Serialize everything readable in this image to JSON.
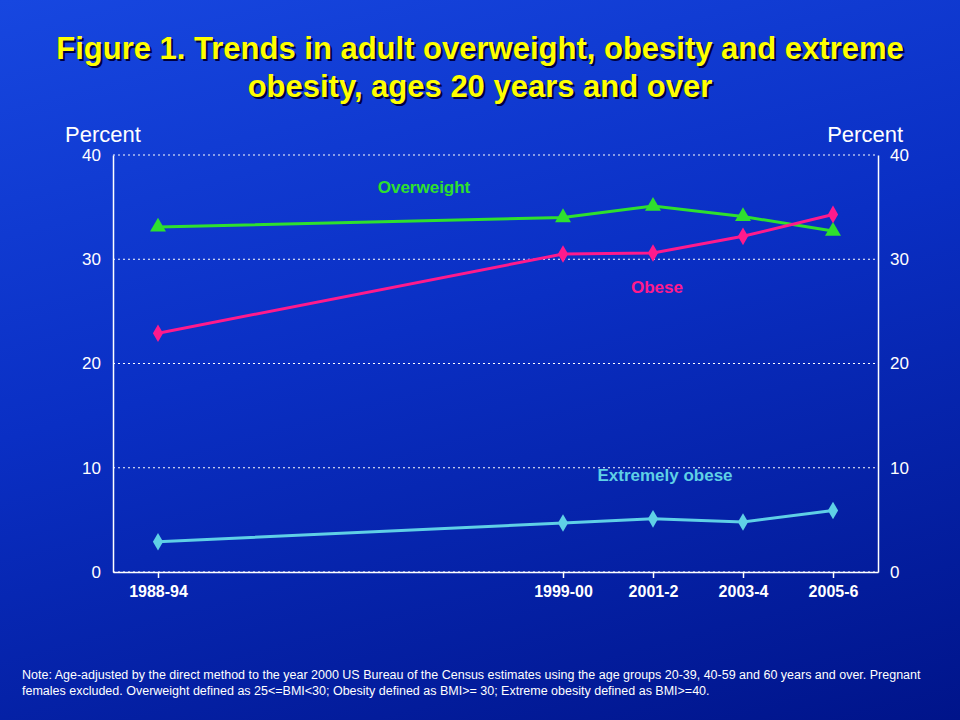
{
  "chart_data": {
    "type": "line",
    "title": "Figure 1. Trends in adult overweight, obesity and extreme obesity, ages 20 years and over",
    "ylabel": "Percent",
    "y2label": "Percent",
    "note": "Note: Age-adjusted by the direct method to the year 2000 US Bureau of the Census estimates using the age groups 20-39, 40-59 and 60 years and over. Pregnant females excluded. Overweight defined as 25<=BMI<30; Obesity defined as BMI>= 30; Extreme obesity defined as BMI>=40.",
    "x": [
      1991,
      2000,
      2002,
      2004,
      2006
    ],
    "xlim": [
      1990,
      2007
    ],
    "xticks": [
      {
        "value": 1991,
        "label": "1988-94"
      },
      {
        "value": 2000,
        "label": "1999-00"
      },
      {
        "value": 2002,
        "label": "2001-2"
      },
      {
        "value": 2004,
        "label": "2003-4"
      },
      {
        "value": 2006,
        "label": "2005-6"
      }
    ],
    "ylim": [
      0,
      40
    ],
    "yticks": [
      0,
      10,
      20,
      30,
      40
    ],
    "y2lim": [
      0,
      40
    ],
    "y2ticks": [
      0,
      10,
      20,
      30,
      40
    ],
    "grid": true,
    "series": [
      {
        "name": "Overweight",
        "color": "#2ee02e",
        "marker": "triangle",
        "line_style": "solid",
        "values": [
          33.1,
          34.0,
          35.1,
          34.1,
          32.7
        ]
      },
      {
        "name": "Obese",
        "color": "#ff1a8c",
        "marker": "diamond",
        "line_style": "solid",
        "values": [
          22.9,
          30.5,
          30.6,
          32.2,
          34.3
        ]
      },
      {
        "name": "Extremely obese",
        "color": "#5fd0e6",
        "marker": "diamond",
        "line_style": "solid",
        "values": [
          2.9,
          4.7,
          5.1,
          4.8,
          5.9
        ]
      }
    ]
  }
}
